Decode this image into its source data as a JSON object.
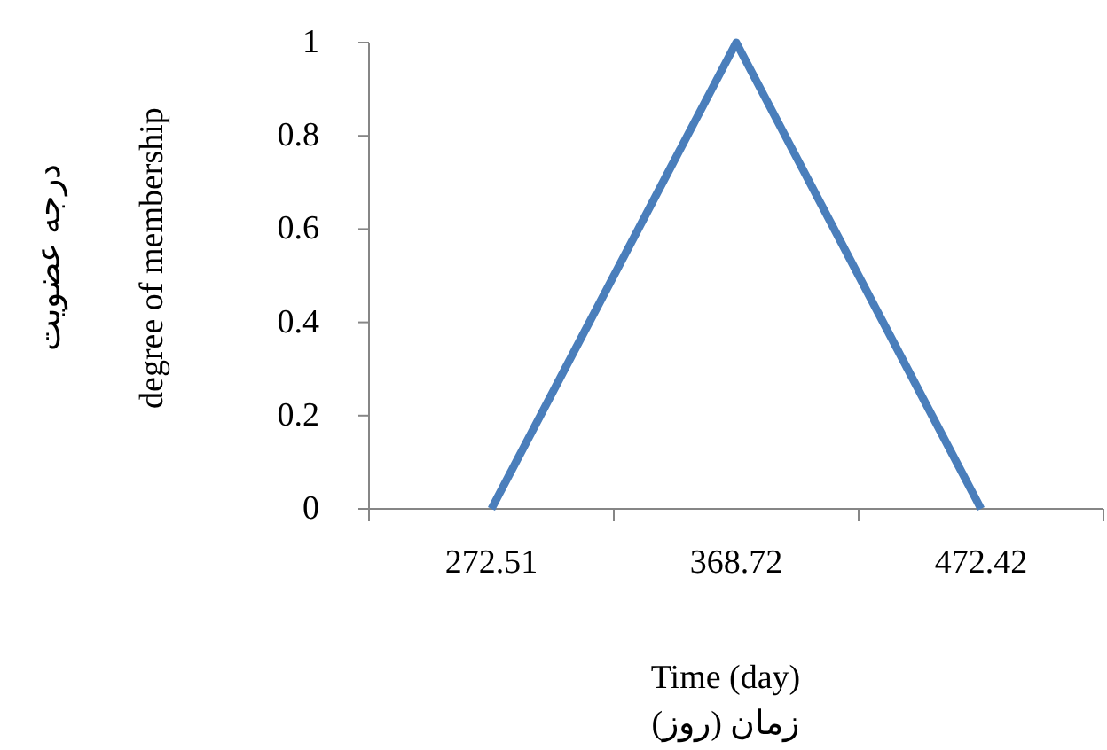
{
  "chart_data": {
    "type": "line",
    "xlabel": "Time (day)\nزمان (روز)",
    "ylabel": "درجه عضویت\ndegree of membership",
    "categories": [
      "272.51",
      "368.72",
      "472.42"
    ],
    "series": [
      {
        "color": "#4a7ebb",
        "values": [
          0,
          1,
          0
        ]
      }
    ],
    "ylim": [
      0,
      1
    ],
    "yticks": [
      0,
      0.2,
      0.4,
      0.6,
      0.8,
      1
    ],
    "grid": false,
    "marker": "none",
    "line_style": "solid"
  }
}
